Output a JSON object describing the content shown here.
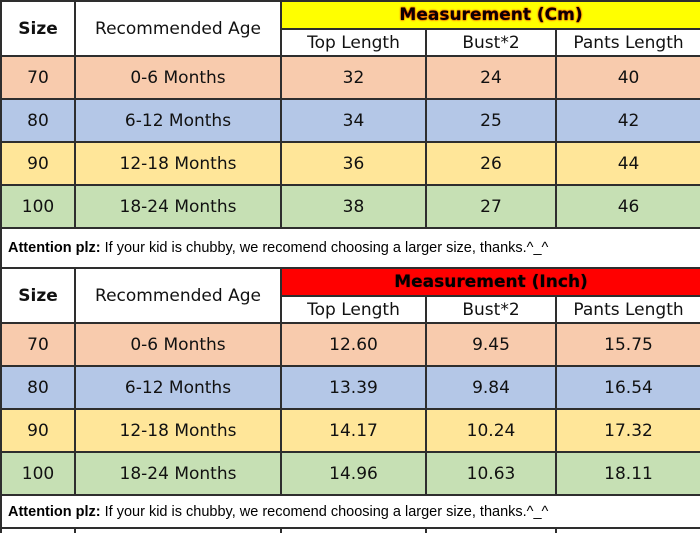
{
  "colors": {
    "band_cm_bg": "#FFFF00",
    "band_inch_bg": "#FF0000",
    "row_70_bg": "#F8CBAD",
    "row_80_bg": "#B4C7E7",
    "row_90_bg": "#FFE699",
    "row_100_bg": "#C6E0B4",
    "grid_border": "#2E2E2E"
  },
  "chart_data": [
    {
      "type": "table",
      "title": "Measurement (Cm)",
      "columns": [
        "Size",
        "Recommended Age",
        "Top Length",
        "Bust*2",
        "Pants Length"
      ],
      "rows": [
        [
          "70",
          "0-6 Months",
          "32",
          "24",
          "40"
        ],
        [
          "80",
          "6-12 Months",
          "34",
          "25",
          "42"
        ],
        [
          "90",
          "12-18 Months",
          "36",
          "26",
          "44"
        ],
        [
          "100",
          "18-24 Months",
          "38",
          "27",
          "46"
        ]
      ],
      "note": {
        "label": "Attention plz:",
        "text": "If your kid is chubby, we recomend choosing a larger size, thanks.^_^"
      }
    },
    {
      "type": "table",
      "title": "Measurement (Inch)",
      "columns": [
        "Size",
        "Recommended Age",
        "Top Length",
        "Bust*2",
        "Pants Length"
      ],
      "rows": [
        [
          "70",
          "0-6 Months",
          "12.60",
          "9.45",
          "15.75"
        ],
        [
          "80",
          "6-12 Months",
          "13.39",
          "9.84",
          "16.54"
        ],
        [
          "90",
          "12-18 Months",
          "14.17",
          "10.24",
          "17.32"
        ],
        [
          "100",
          "18-24 Months",
          "14.96",
          "10.63",
          "18.11"
        ]
      ],
      "note": {
        "label": "Attention plz:",
        "text": "If your kid is chubby, we recomend choosing a larger size, thanks.^_^"
      }
    }
  ]
}
